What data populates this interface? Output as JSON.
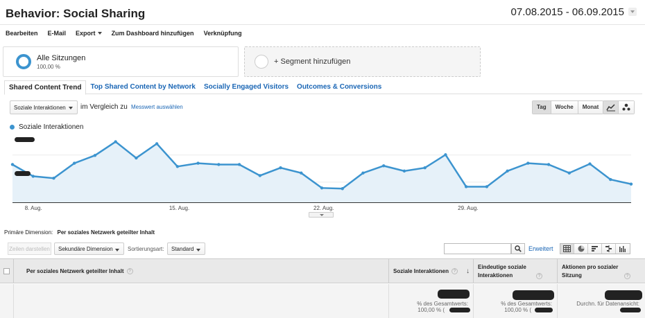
{
  "header": {
    "title": "Behavior: Social Sharing",
    "date_range": "07.08.2015 - 06.09.2015"
  },
  "toolbar": {
    "items": [
      "Bearbeiten",
      "E-Mail",
      "Export",
      "Zum Dashboard hinzufügen",
      "Verknüpfung"
    ]
  },
  "segment": {
    "name": "Alle Sitzungen",
    "percent": "100,00 %",
    "add_label": "+ Segment hinzufügen"
  },
  "tabs": [
    "Shared Content Trend",
    "Top Shared Content by Network",
    "Socially Engaged Visitors",
    "Outcomes & Conversions"
  ],
  "controls": {
    "metric_select": "Soziale Interaktionen",
    "compare_text": "im Vergleich zu",
    "compare_link": "Messwert auswählen",
    "periods": [
      "Tag",
      "Woche",
      "Monat"
    ],
    "active_period": "Tag"
  },
  "chart_data": {
    "type": "area",
    "series": [
      {
        "name": "Soziale Interaktionen",
        "values": [
          58,
          40,
          37,
          60,
          72,
          93,
          68,
          90,
          55,
          60,
          58,
          58,
          41,
          53,
          45,
          22,
          21,
          45,
          56,
          48,
          53,
          73,
          24,
          24,
          48,
          60,
          58,
          45,
          59,
          35,
          28
        ]
      }
    ],
    "x": [
      "07.08",
      "08.08",
      "09.08",
      "10.08",
      "11.08",
      "12.08",
      "13.08",
      "14.08",
      "15.08",
      "16.08",
      "17.08",
      "18.08",
      "19.08",
      "20.08",
      "21.08",
      "22.08",
      "23.08",
      "24.08",
      "25.08",
      "26.08",
      "27.08",
      "28.08",
      "29.08",
      "30.08",
      "31.08",
      "01.09",
      "02.09",
      "03.09",
      "04.09",
      "05.09",
      "06.09"
    ],
    "x_tick_labels": [
      "8. Aug.",
      "15. Aug.",
      "22. Aug.",
      "29. Aug."
    ],
    "y_tick_labels_hidden": true,
    "grid": true,
    "color": "#3c94cf",
    "fill": "#e6f1f9"
  },
  "table": {
    "primary_dimension_label": "Primäre Dimension:",
    "primary_dimension_value": "Per soziales Netzwerk geteilter Inhalt",
    "btn_rows": "Zeilen darstellen",
    "secondary_dimension": "Sekundäre Dimension",
    "sort_label": "Sortierungsart:",
    "sort_value": "Standard",
    "search_placeholder": "",
    "advanced_link": "Erweitert",
    "headers": {
      "dimension": "Per soziales Netzwerk geteilter Inhalt",
      "col1": "Soziale Interaktionen",
      "col2": "Eindeutige soziale Interaktionen",
      "col3": "Aktionen pro sozialer Sitzung"
    },
    "totals": {
      "col1_caption": "% des Gesamtwerts:",
      "col1_pct": "100,00 % (",
      "col2_caption": "% des Gesamtwerts:",
      "col2_pct": "100,00 % (",
      "col3_caption": "Durchn. für Datenansicht:"
    }
  }
}
